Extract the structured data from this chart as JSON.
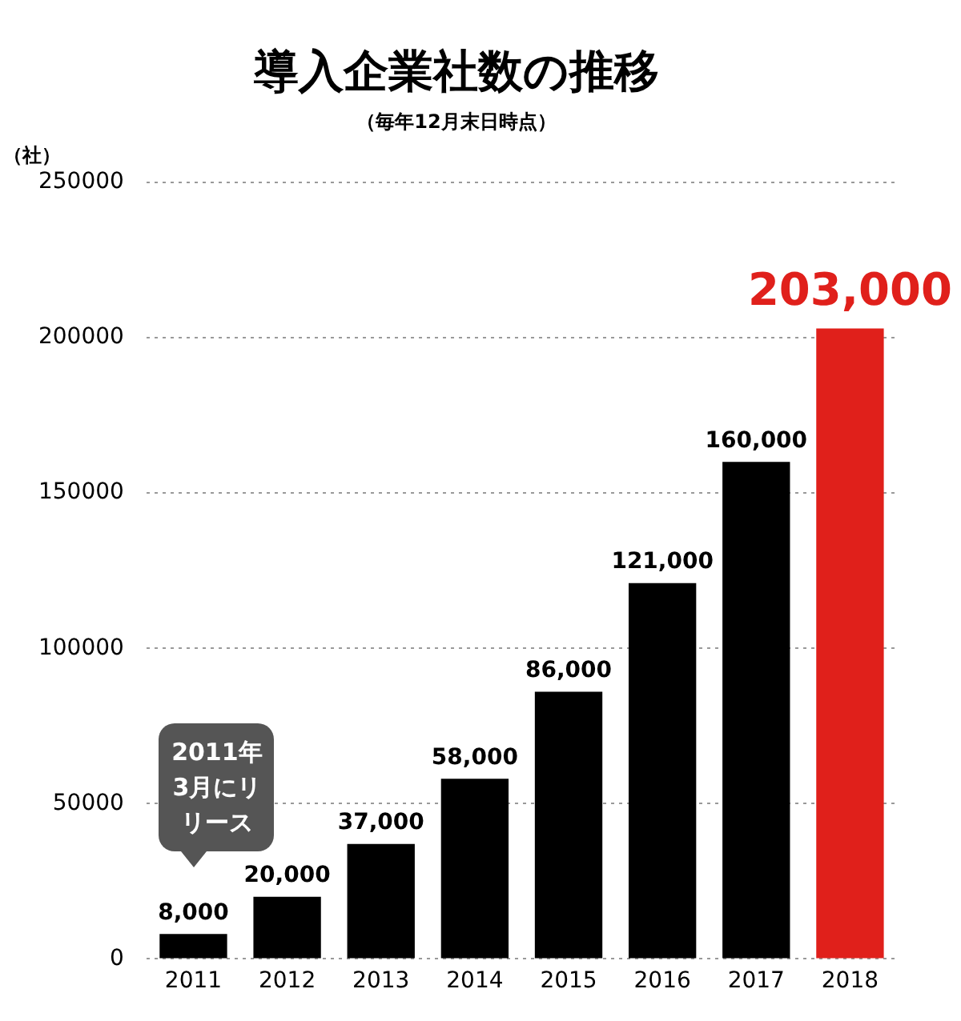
{
  "chart_data": {
    "type": "bar",
    "title": "導入企業社数の推移",
    "subtitle": "（毎年12月末日時点）",
    "ylabel": "（社）",
    "categories": [
      "2011",
      "2012",
      "2013",
      "2014",
      "2015",
      "2016",
      "2017",
      "2018"
    ],
    "values": [
      8000,
      20000,
      37000,
      58000,
      86000,
      121000,
      160000,
      203000
    ],
    "colors": [
      "#000000",
      "#000000",
      "#000000",
      "#000000",
      "#000000",
      "#000000",
      "#000000",
      "#e0201b"
    ],
    "value_labels": [
      "8,000",
      "20,000",
      "37,000",
      "58,000",
      "86,000",
      "121,000",
      "160,000",
      "203,000"
    ],
    "annotations": [
      "2011年3月にリリース"
    ],
    "ylim": [
      0,
      250000
    ],
    "yticks": [
      0,
      50000,
      100000,
      150000,
      200000,
      250000
    ],
    "grid": "y",
    "legend": false
  }
}
